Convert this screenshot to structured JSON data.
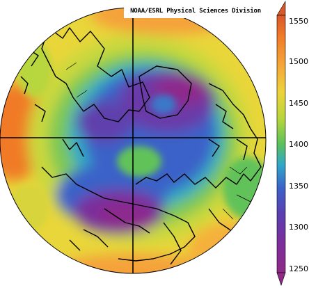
{
  "credit": "NOAA/ESRL Physical Sciences Division",
  "colorbar": {
    "ticks": [
      "1550",
      "1500",
      "1450",
      "1400",
      "1350",
      "1300",
      "1250"
    ],
    "colors": [
      "#f06a20",
      "#f5a23a",
      "#e9d63a",
      "#b7d83b",
      "#62c25a",
      "#2ea8c6",
      "#3a5fc7",
      "#5a3fb0",
      "#7a2f9c",
      "#8e2c8c"
    ]
  }
}
